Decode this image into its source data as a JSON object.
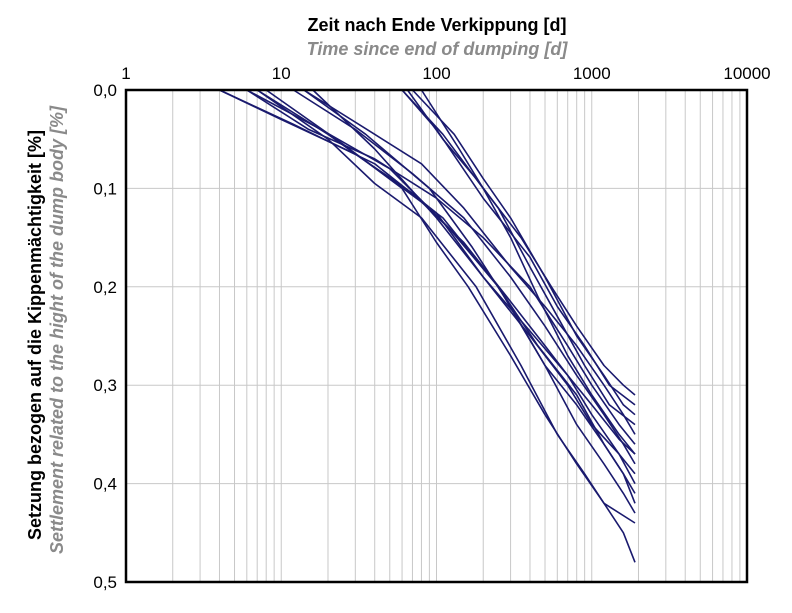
{
  "chart_data": {
    "type": "line",
    "title_x": "Zeit nach Ende Verkippung [d]",
    "subtitle_x": "Time since end of dumping [d]",
    "title_y": "Setzung bezogen auf die Kippenmächtigkeit [%]",
    "subtitle_y": "Settlement related to the hight of the dump body [%]",
    "x_axis": {
      "scale": "log",
      "range": [
        1,
        10000
      ],
      "position": "top",
      "ticks": [
        1,
        10,
        100,
        1000,
        10000
      ],
      "tick_labels": [
        "1",
        "10",
        "100",
        "1000",
        "10000"
      ]
    },
    "y_axis": {
      "scale": "linear",
      "range": [
        0,
        0.5
      ],
      "inverted": true,
      "ticks": [
        0,
        0.1,
        0.2,
        0.3,
        0.4,
        0.5
      ],
      "tick_labels": [
        "0,0",
        "0,1",
        "0,2",
        "0,3",
        "0,4",
        "0,5"
      ]
    },
    "grid": true,
    "legend": "none",
    "line_color": "#1a1a6e",
    "series": [
      {
        "points": [
          [
            4,
            0
          ],
          [
            10,
            0.03
          ],
          [
            30,
            0.065
          ],
          [
            70,
            0.105
          ],
          [
            150,
            0.155
          ],
          [
            300,
            0.215
          ],
          [
            500,
            0.26
          ],
          [
            700,
            0.29
          ],
          [
            1000,
            0.32
          ],
          [
            1500,
            0.355
          ],
          [
            1900,
            0.37
          ]
        ]
      },
      {
        "points": [
          [
            4,
            0
          ],
          [
            12,
            0.035
          ],
          [
            40,
            0.075
          ],
          [
            100,
            0.125
          ],
          [
            200,
            0.19
          ],
          [
            400,
            0.245
          ],
          [
            700,
            0.29
          ],
          [
            1000,
            0.33
          ],
          [
            1500,
            0.37
          ],
          [
            1900,
            0.39
          ]
        ]
      },
      {
        "points": [
          [
            6,
            0
          ],
          [
            15,
            0.04
          ],
          [
            40,
            0.07
          ],
          [
            100,
            0.11
          ],
          [
            200,
            0.15
          ],
          [
            400,
            0.2
          ],
          [
            700,
            0.26
          ],
          [
            1000,
            0.3
          ],
          [
            1500,
            0.34
          ],
          [
            1900,
            0.36
          ]
        ]
      },
      {
        "points": [
          [
            6,
            0
          ],
          [
            18,
            0.04
          ],
          [
            50,
            0.08
          ],
          [
            120,
            0.14
          ],
          [
            250,
            0.2
          ],
          [
            450,
            0.26
          ],
          [
            800,
            0.31
          ],
          [
            1200,
            0.36
          ],
          [
            1600,
            0.39
          ],
          [
            1900,
            0.41
          ]
        ]
      },
      {
        "points": [
          [
            7,
            0
          ],
          [
            20,
            0.045
          ],
          [
            50,
            0.09
          ],
          [
            110,
            0.13
          ],
          [
            250,
            0.2
          ],
          [
            500,
            0.28
          ],
          [
            800,
            0.34
          ],
          [
            1200,
            0.38
          ],
          [
            1600,
            0.41
          ],
          [
            1900,
            0.43
          ]
        ]
      },
      {
        "points": [
          [
            7,
            0
          ],
          [
            20,
            0.05
          ],
          [
            40,
            0.095
          ],
          [
            80,
            0.13
          ],
          [
            180,
            0.2
          ],
          [
            350,
            0.28
          ],
          [
            600,
            0.35
          ],
          [
            900,
            0.39
          ],
          [
            1200,
            0.42
          ],
          [
            1600,
            0.45
          ],
          [
            1900,
            0.48
          ]
        ]
      },
      {
        "points": [
          [
            8,
            0
          ],
          [
            25,
            0.055
          ],
          [
            60,
            0.1
          ],
          [
            100,
            0.155
          ],
          [
            160,
            0.2
          ],
          [
            300,
            0.27
          ],
          [
            500,
            0.33
          ],
          [
            800,
            0.38
          ],
          [
            1200,
            0.42
          ],
          [
            1900,
            0.44
          ]
        ]
      },
      {
        "points": [
          [
            12,
            0
          ],
          [
            30,
            0.04
          ],
          [
            70,
            0.085
          ],
          [
            150,
            0.13
          ],
          [
            300,
            0.19
          ],
          [
            500,
            0.24
          ],
          [
            800,
            0.29
          ],
          [
            1200,
            0.33
          ],
          [
            1600,
            0.36
          ],
          [
            1900,
            0.38
          ]
        ]
      },
      {
        "points": [
          [
            14,
            0
          ],
          [
            40,
            0.045
          ],
          [
            80,
            0.075
          ],
          [
            150,
            0.12
          ],
          [
            300,
            0.18
          ],
          [
            500,
            0.22
          ],
          [
            800,
            0.26
          ],
          [
            1200,
            0.3
          ],
          [
            1600,
            0.33
          ],
          [
            1900,
            0.35
          ]
        ]
      },
      {
        "points": [
          [
            14,
            0
          ],
          [
            35,
            0.045
          ],
          [
            90,
            0.1
          ],
          [
            170,
            0.16
          ],
          [
            300,
            0.22
          ],
          [
            500,
            0.28
          ],
          [
            800,
            0.32
          ],
          [
            1200,
            0.36
          ],
          [
            1600,
            0.39
          ],
          [
            1900,
            0.42
          ]
        ]
      },
      {
        "points": [
          [
            16,
            0
          ],
          [
            40,
            0.06
          ],
          [
            100,
            0.13
          ],
          [
            200,
            0.19
          ],
          [
            400,
            0.25
          ],
          [
            700,
            0.3
          ],
          [
            1000,
            0.34
          ],
          [
            1500,
            0.37
          ],
          [
            1900,
            0.4
          ]
        ]
      },
      {
        "points": [
          [
            60,
            0
          ],
          [
            100,
            0.04
          ],
          [
            200,
            0.11
          ],
          [
            400,
            0.17
          ],
          [
            600,
            0.22
          ],
          [
            900,
            0.26
          ],
          [
            1300,
            0.3
          ],
          [
            1900,
            0.32
          ]
        ]
      },
      {
        "points": [
          [
            60,
            0
          ],
          [
            110,
            0.045
          ],
          [
            200,
            0.1
          ],
          [
            350,
            0.15
          ],
          [
            550,
            0.2
          ],
          [
            800,
            0.24
          ],
          [
            1200,
            0.28
          ],
          [
            1600,
            0.3
          ],
          [
            1900,
            0.31
          ]
        ]
      },
      {
        "points": [
          [
            65,
            0
          ],
          [
            110,
            0.05
          ],
          [
            180,
            0.09
          ],
          [
            250,
            0.12
          ],
          [
            400,
            0.18
          ],
          [
            600,
            0.23
          ],
          [
            900,
            0.28
          ],
          [
            1300,
            0.32
          ],
          [
            1900,
            0.34
          ]
        ]
      },
      {
        "points": [
          [
            70,
            0
          ],
          [
            130,
            0.045
          ],
          [
            200,
            0.09
          ],
          [
            300,
            0.13
          ],
          [
            500,
            0.19
          ],
          [
            800,
            0.25
          ],
          [
            1200,
            0.29
          ],
          [
            1600,
            0.32
          ],
          [
            1900,
            0.33
          ]
        ]
      },
      {
        "points": [
          [
            80,
            0
          ],
          [
            140,
            0.06
          ],
          [
            200,
            0.1
          ],
          [
            300,
            0.15
          ],
          [
            450,
            0.21
          ],
          [
            700,
            0.27
          ],
          [
            1000,
            0.31
          ],
          [
            1500,
            0.35
          ],
          [
            1900,
            0.37
          ]
        ]
      }
    ]
  }
}
